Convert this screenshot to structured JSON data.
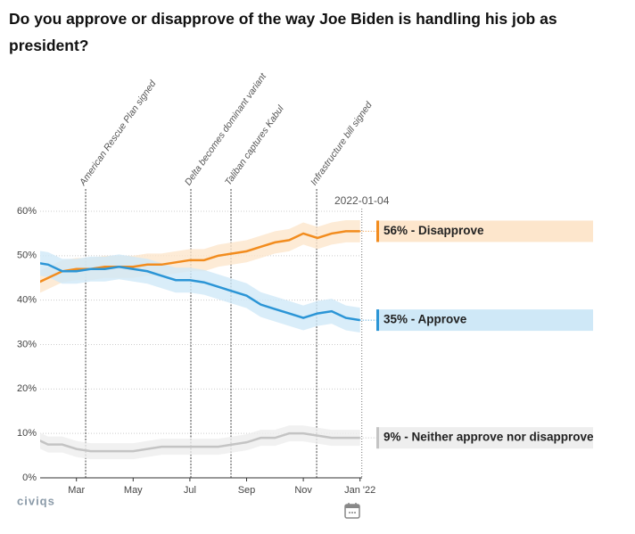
{
  "chart_data": {
    "type": "line",
    "title": "Do you approve or disapprove of the way Joe Biden is handling his job as president?",
    "categories": [
      null,
      null,
      null,
      "Mar",
      null,
      null,
      null,
      "May",
      null,
      null,
      null,
      "Jul",
      null,
      null,
      null,
      "Sep",
      null,
      null,
      null,
      "Nov",
      null,
      null,
      null,
      "Jan '22"
    ],
    "ylim": [
      0,
      60
    ],
    "yticks": [
      {
        "value": 0,
        "label": "0%"
      },
      {
        "value": 10,
        "label": "10%"
      },
      {
        "value": 20,
        "label": "20%"
      },
      {
        "value": 30,
        "label": "30%"
      },
      {
        "value": 40,
        "label": "40%"
      },
      {
        "value": 50,
        "label": "50%"
      },
      {
        "value": 60,
        "label": "60%"
      }
    ],
    "grid": true,
    "hover_label": "2022-01-04",
    "series": [
      {
        "name": "56% - Disapprove",
        "color": "#f28c1e",
        "band_color": "#fde6cc",
        "band": 2.5,
        "values": [
          43.5,
          45,
          46.5,
          47,
          47,
          47.5,
          47.5,
          47.5,
          48,
          48,
          48.5,
          49,
          49,
          50,
          50.5,
          51,
          52,
          53,
          53.5,
          55,
          54,
          55,
          55.5,
          55.5
        ]
      },
      {
        "name": "35% - Approve",
        "color": "#2b95d6",
        "band_color": "#cfe8f7",
        "band": 2.8,
        "values": [
          48.5,
          48,
          46.5,
          46.5,
          47,
          47,
          47.5,
          47,
          46.5,
          45.5,
          44.5,
          44.5,
          44,
          43,
          42,
          41,
          39,
          38,
          37,
          36,
          37,
          37.5,
          36,
          35.5
        ]
      },
      {
        "name": "9% - Neither approve nor disapprove",
        "color": "#c4c4c4",
        "band_color": "#eeeeee",
        "band": 1.8,
        "values": [
          9,
          7.5,
          7.5,
          6.5,
          6,
          6,
          6,
          6,
          6.5,
          7,
          7,
          7,
          7,
          7,
          7.5,
          8,
          9,
          9,
          10,
          10,
          9.5,
          9,
          9,
          9
        ]
      }
    ],
    "annotations": [
      {
        "text": "American Rescue Plan signed",
        "index": 3.65
      },
      {
        "text": "Delta becomes dominant variant",
        "index": 11.07
      },
      {
        "text": "Taliban captures Kabul",
        "index": 13.9
      },
      {
        "text": "Infrastructure bill signed",
        "index": 19.94
      }
    ],
    "logo": "civiqs"
  }
}
